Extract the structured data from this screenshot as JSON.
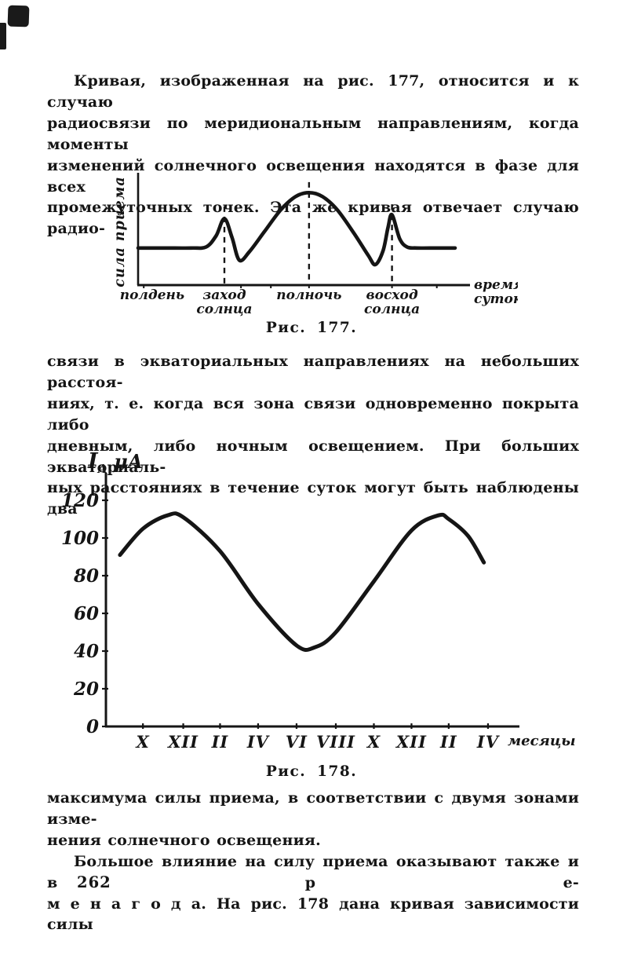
{
  "page": {
    "number": "262",
    "ink": "#151515",
    "paper": "#ffffff"
  },
  "paragraphs": {
    "p1": {
      "lines": [
        "Кривая, изображенная на рис. 177, относится и к случаю",
        "радиосвязи по меридиональным направлениям, когда моменты",
        "изменений солнечного освещения находятся в фазе для всех",
        "промежуточных точек. Эта же кривая отвечает случаю радио-"
      ]
    },
    "p2": {
      "lines": [
        "связи в экваториальных направлениях на небольших расстоя-",
        "ниях, т. е. когда вся зона связи одновременно покрыта либо",
        "дневным, либо ночным освещением. При больших экваториаль-",
        "ных расстояниях в течение суток могут быть наблюдены два"
      ]
    },
    "p3": {
      "lines": [
        "максимума силы приема, в соответствии с двумя зонами изме-",
        "нения солнечного освещения.",
        "Большое влияние на силу приема оказывают также и в р е-",
        "м е н а   г о д а. На рис. 178 дана кривая зависимости силы"
      ]
    }
  },
  "figure177": {
    "caption": "Рис. 177.",
    "ylabel": "сила приема",
    "xlabel_lines": [
      "время",
      "суток."
    ],
    "x_labels": [
      {
        "text_lines": [
          "полдень"
        ],
        "f": -0.055,
        "anchor": "start"
      },
      {
        "text_lines": [
          "заход",
          "солнца"
        ],
        "f": 0.26,
        "anchor": "middle"
      },
      {
        "text_lines": [
          "полночь"
        ],
        "f": 0.515,
        "anchor": "middle"
      },
      {
        "text_lines": [
          "восход",
          "солнца"
        ],
        "f": 0.765,
        "anchor": "middle"
      }
    ],
    "dashed": [
      {
        "f": 0.26,
        "top_v": 0.71
      },
      {
        "f": 0.515,
        "top_v": 0.93
      },
      {
        "f": 0.765,
        "top_v": 0.73
      }
    ],
    "ticks_f": [
      0.017,
      0.31,
      0.4,
      0.515,
      0.765,
      0.9
    ]
  },
  "figure178": {
    "caption": "Рис. 178.",
    "ylabel_main": "I",
    "ylabel_sub": "А",
    "ylabel_unit": " μА",
    "xlabel": "месяцы",
    "y_ticks": [
      0,
      20,
      40,
      60,
      80,
      100,
      120
    ],
    "x_tick_labels": [
      "X",
      "XII",
      "II",
      "IV",
      "VI",
      "VIII",
      "X",
      "XII",
      "II",
      "IV"
    ],
    "x_ticks_f": [
      0.0895,
      0.187,
      0.276,
      0.368,
      0.461,
      0.556,
      0.648,
      0.739,
      0.829,
      0.924
    ]
  },
  "chart_data": [
    {
      "id": "fig-177",
      "type": "line",
      "title": "Рис. 177.",
      "xlabel": "время суток.",
      "ylabel": "сила приема",
      "x_annotations": [
        "полдень",
        "заход солнца",
        "полночь",
        "восход солнца"
      ],
      "ylim": [
        0,
        1
      ],
      "grid": false,
      "legend": false,
      "description": "Качественная кривая силы приема в течение суток: ровный дневной уровень, короткий пик при заходе солнца, широкий купол с максимумом в полночь, провалы до и после, короткий пик при восходе солнца, возврат к ровному уровню.",
      "points_normalized": [
        [
          0.0,
          0.335
        ],
        [
          0.08,
          0.335
        ],
        [
          0.16,
          0.335
        ],
        [
          0.205,
          0.345
        ],
        [
          0.235,
          0.445
        ],
        [
          0.26,
          0.6
        ],
        [
          0.283,
          0.43
        ],
        [
          0.305,
          0.225
        ],
        [
          0.335,
          0.3
        ],
        [
          0.38,
          0.48
        ],
        [
          0.43,
          0.68
        ],
        [
          0.475,
          0.8
        ],
        [
          0.515,
          0.835
        ],
        [
          0.555,
          0.8
        ],
        [
          0.6,
          0.68
        ],
        [
          0.65,
          0.47
        ],
        [
          0.693,
          0.27
        ],
        [
          0.715,
          0.185
        ],
        [
          0.738,
          0.31
        ],
        [
          0.753,
          0.52
        ],
        [
          0.765,
          0.635
        ],
        [
          0.788,
          0.42
        ],
        [
          0.81,
          0.345
        ],
        [
          0.84,
          0.335
        ],
        [
          0.9,
          0.335
        ],
        [
          0.955,
          0.335
        ]
      ]
    },
    {
      "id": "fig-178",
      "type": "line",
      "title": "Рис. 178.",
      "xlabel": "месяцы",
      "ylabel": "Iа μА",
      "ylim": [
        0,
        130
      ],
      "y_ticks": [
        0,
        20,
        40,
        60,
        80,
        100,
        120
      ],
      "x_tick_labels": [
        "X",
        "XII",
        "II",
        "IV",
        "VI",
        "VIII",
        "X",
        "XII",
        "II",
        "IV"
      ],
      "grid": false,
      "legend": false,
      "description": "Годовой ход анодного тока (силы приема): максимум ~112 μА зимой (около XII–I), минимум ~42 μА летом (около VI–VII), второй максимум ~112 μА следующей зимой.",
      "points": [
        {
          "f": 0.034,
          "uA": 91
        },
        {
          "f": 0.09,
          "uA": 105
        },
        {
          "f": 0.149,
          "uA": 112
        },
        {
          "f": 0.187,
          "uA": 111
        },
        {
          "f": 0.276,
          "uA": 93
        },
        {
          "f": 0.368,
          "uA": 65
        },
        {
          "f": 0.461,
          "uA": 43
        },
        {
          "f": 0.505,
          "uA": 42
        },
        {
          "f": 0.556,
          "uA": 50
        },
        {
          "f": 0.648,
          "uA": 77
        },
        {
          "f": 0.739,
          "uA": 104
        },
        {
          "f": 0.804,
          "uA": 112
        },
        {
          "f": 0.829,
          "uA": 110
        },
        {
          "f": 0.876,
          "uA": 101
        },
        {
          "f": 0.914,
          "uA": 87
        }
      ]
    }
  ]
}
